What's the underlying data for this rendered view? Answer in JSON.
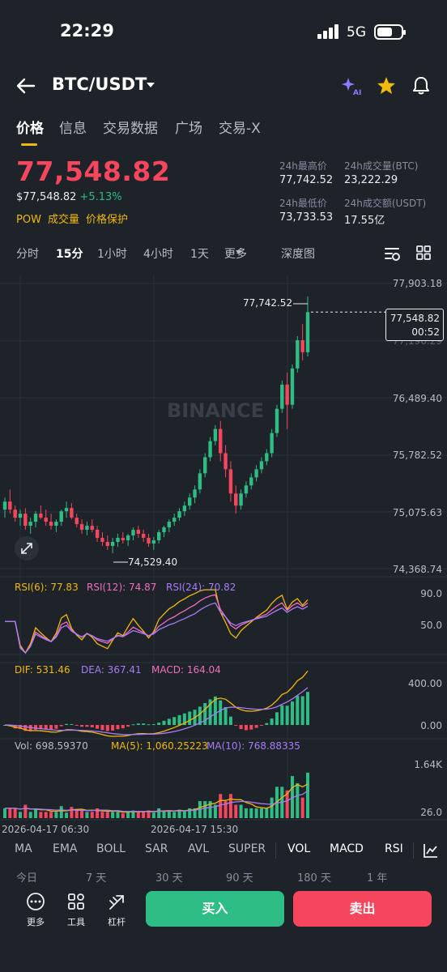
{
  "status": {
    "time": "22:29",
    "network": "5G"
  },
  "header": {
    "pair": "BTC/USDT"
  },
  "tabs": [
    "价格",
    "信息",
    "交易数据",
    "广场",
    "交易-X"
  ],
  "price": {
    "last": "77,548.82",
    "usd": "$77,548.82",
    "change": "+5.13%"
  },
  "tags": [
    "POW",
    "成交量",
    "价格保护"
  ],
  "stats": {
    "high_label": "24h最高价",
    "high": "77,742.52",
    "vol_btc_label": "24h成交量(BTC)",
    "vol_btc": "23,222.29",
    "low_label": "24h最低价",
    "low": "73,733.53",
    "vol_usdt_label": "24h成交额(USDT)",
    "vol_usdt": "17.55亿"
  },
  "intervals": [
    "分时",
    "15分",
    "1小时",
    "4小时",
    "1天",
    "更多",
    "深度图"
  ],
  "watermark": "BINANCE",
  "chart_data": {
    "type": "candlestick",
    "price_ticks": [
      "77,903.18",
      "77,196.29",
      "76,489.40",
      "75,782.52",
      "75,075.63",
      "74,368.74"
    ],
    "high_marker": "77,742.52",
    "low_marker": "74,529.40",
    "last_price": "77,548.82",
    "countdown": "00:52",
    "x_ticks": [
      "2026-04-17 06:30",
      "2026-04-17 15:30"
    ],
    "candles": [
      [
        75100,
        75250,
        75000,
        75200
      ],
      [
        75200,
        75350,
        75050,
        75100
      ],
      [
        75100,
        75150,
        74950,
        75000
      ],
      [
        75000,
        75100,
        74900,
        75050
      ],
      [
        75050,
        75120,
        74850,
        74900
      ],
      [
        74900,
        75000,
        74800,
        74950
      ],
      [
        74950,
        75080,
        74880,
        75050
      ],
      [
        75050,
        75150,
        74980,
        75000
      ],
      [
        75000,
        75100,
        74900,
        74950
      ],
      [
        74950,
        75050,
        74850,
        74900
      ],
      [
        74900,
        74980,
        74820,
        74950
      ],
      [
        74950,
        75100,
        74900,
        75080
      ],
      [
        75080,
        75200,
        75000,
        75120
      ],
      [
        75120,
        75180,
        74980,
        75000
      ],
      [
        75000,
        75050,
        74880,
        74920
      ],
      [
        74920,
        74980,
        74800,
        74850
      ],
      [
        74850,
        74950,
        74780,
        74900
      ],
      [
        74900,
        74980,
        74820,
        74850
      ],
      [
        74850,
        74900,
        74700,
        74750
      ],
      [
        74750,
        74820,
        74650,
        74700
      ],
      [
        74700,
        74780,
        74600,
        74650
      ],
      [
        74650,
        74750,
        74560,
        74700
      ],
      [
        74700,
        74800,
        74640,
        74750
      ],
      [
        74750,
        74820,
        74680,
        74720
      ],
      [
        74720,
        74800,
        74650,
        74780
      ],
      [
        74780,
        74880,
        74720,
        74850
      ],
      [
        74850,
        74900,
        74750,
        74800
      ],
      [
        74800,
        74850,
        74700,
        74750
      ],
      [
        74750,
        74800,
        74640,
        74680
      ],
      [
        74680,
        74760,
        74600,
        74720
      ],
      [
        74720,
        74850,
        74680,
        74820
      ],
      [
        74820,
        74900,
        74760,
        74880
      ],
      [
        74880,
        74980,
        74820,
        74950
      ],
      [
        74950,
        75050,
        74900,
        75000
      ],
      [
        75000,
        75120,
        74960,
        75080
      ],
      [
        75080,
        75200,
        75020,
        75150
      ],
      [
        75150,
        75300,
        75100,
        75250
      ],
      [
        75250,
        75400,
        75180,
        75350
      ],
      [
        75350,
        75600,
        75300,
        75550
      ],
      [
        75550,
        75800,
        75500,
        75750
      ],
      [
        75750,
        76000,
        75700,
        75950
      ],
      [
        75950,
        76150,
        75900,
        76100
      ],
      [
        76100,
        76200,
        75700,
        75800
      ],
      [
        75800,
        75900,
        75500,
        75600
      ],
      [
        75600,
        75700,
        75200,
        75300
      ],
      [
        75300,
        75400,
        75050,
        75150
      ],
      [
        75150,
        75350,
        75100,
        75300
      ],
      [
        75300,
        75450,
        75250,
        75400
      ],
      [
        75400,
        75550,
        75350,
        75500
      ],
      [
        75500,
        75650,
        75450,
        75600
      ],
      [
        75600,
        75750,
        75550,
        75700
      ],
      [
        75700,
        75850,
        75650,
        75800
      ],
      [
        75800,
        76100,
        75750,
        76050
      ],
      [
        76050,
        76400,
        76000,
        76350
      ],
      [
        76350,
        76700,
        76300,
        76650
      ],
      [
        76650,
        76800,
        76100,
        76400
      ],
      [
        76400,
        76900,
        76350,
        76850
      ],
      [
        76850,
        77250,
        76800,
        77200
      ],
      [
        77200,
        77400,
        76950,
        77050
      ],
      [
        77050,
        77742,
        77000,
        77548
      ]
    ]
  },
  "indicators": {
    "rsi": {
      "rsi6": "RSI(6): 77.83",
      "rsi12": "RSI(12): 74.87",
      "rsi24": "RSI(24): 70.82",
      "ticks": [
        "90.0",
        "50.0"
      ]
    },
    "macd": {
      "dif": "DIF: 531.46",
      "dea": "DEA: 367.41",
      "macd": "MACD: 164.04",
      "ticks": [
        "400.00",
        "0.00"
      ]
    },
    "vol": {
      "vol": "Vol: 698.59370",
      "ma5": "MA(5): 1,060.25223",
      "ma10": "MA(10): 768.88335",
      "ticks": [
        "1.64K",
        "26.0"
      ]
    }
  },
  "tools": [
    "MA",
    "EMA",
    "BOLL",
    "SAR",
    "AVL",
    "SUPER",
    "VOL",
    "MACD",
    "RSI"
  ],
  "ranges": [
    "今日",
    "7 天",
    "30 天",
    "90 天",
    "180 天",
    "1 年"
  ],
  "bottom": {
    "more": "更多",
    "tools": "工具",
    "leverage": "杠杆",
    "buy": "买入",
    "sell": "卖出"
  },
  "colors": {
    "up": "#2ebd85",
    "down": "#f6465d",
    "accent": "#f0b90b",
    "bg": "#1e2229"
  }
}
